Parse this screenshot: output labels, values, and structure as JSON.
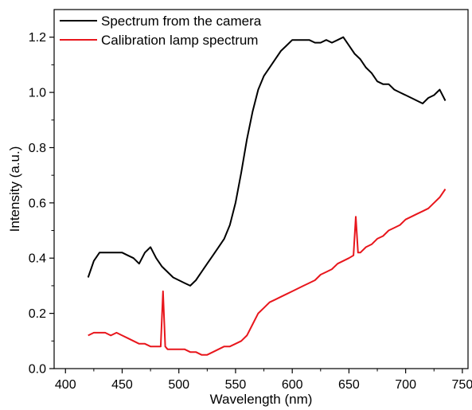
{
  "chart_data": {
    "type": "line",
    "title": "",
    "xlabel": "Wavelength (nm)",
    "ylabel": "Intensity (a.u.)",
    "xlim": [
      390,
      755
    ],
    "ylim": [
      0.0,
      1.3
    ],
    "xticks": [
      400,
      450,
      500,
      550,
      600,
      650,
      700,
      750
    ],
    "yticks": [
      0.0,
      0.2,
      0.4,
      0.6,
      0.8,
      1.0,
      1.2
    ],
    "ytick_labels": [
      "0.0",
      "0.2",
      "0.4",
      "0.6",
      "0.8",
      "1.0",
      "1.2"
    ],
    "grid": false,
    "legend": "top-left",
    "series": [
      {
        "name": "Spectrum from the camera",
        "color": "#000000",
        "x": [
          420,
          425,
          430,
          435,
          440,
          445,
          450,
          455,
          460,
          465,
          470,
          475,
          480,
          485,
          490,
          495,
          500,
          505,
          510,
          515,
          520,
          525,
          530,
          535,
          540,
          545,
          550,
          555,
          560,
          565,
          570,
          575,
          580,
          585,
          590,
          595,
          600,
          605,
          610,
          615,
          620,
          625,
          630,
          635,
          640,
          645,
          650,
          655,
          660,
          665,
          670,
          675,
          680,
          685,
          690,
          695,
          700,
          705,
          710,
          715,
          720,
          725,
          730,
          735
        ],
        "y": [
          0.33,
          0.39,
          0.42,
          0.42,
          0.42,
          0.42,
          0.42,
          0.41,
          0.4,
          0.38,
          0.42,
          0.44,
          0.4,
          0.37,
          0.35,
          0.33,
          0.32,
          0.31,
          0.3,
          0.32,
          0.35,
          0.38,
          0.41,
          0.44,
          0.47,
          0.52,
          0.6,
          0.71,
          0.83,
          0.93,
          1.01,
          1.06,
          1.09,
          1.12,
          1.15,
          1.17,
          1.19,
          1.19,
          1.19,
          1.19,
          1.18,
          1.18,
          1.19,
          1.18,
          1.19,
          1.2,
          1.17,
          1.14,
          1.12,
          1.09,
          1.07,
          1.04,
          1.03,
          1.03,
          1.01,
          1.0,
          0.99,
          0.98,
          0.97,
          0.96,
          0.98,
          0.99,
          1.01,
          0.97
        ]
      },
      {
        "name": "Calibration lamp spectrum",
        "color": "#e8161c",
        "x": [
          420,
          425,
          430,
          435,
          440,
          445,
          450,
          455,
          460,
          465,
          470,
          475,
          480,
          484,
          486,
          488,
          490,
          495,
          500,
          505,
          510,
          515,
          520,
          525,
          530,
          535,
          540,
          545,
          550,
          555,
          560,
          565,
          570,
          575,
          580,
          585,
          590,
          595,
          600,
          605,
          610,
          615,
          620,
          625,
          630,
          635,
          640,
          645,
          650,
          654,
          656,
          658,
          660,
          665,
          670,
          675,
          680,
          685,
          690,
          695,
          700,
          705,
          710,
          715,
          720,
          725,
          730,
          735
        ],
        "y": [
          0.12,
          0.13,
          0.13,
          0.13,
          0.12,
          0.13,
          0.12,
          0.11,
          0.1,
          0.09,
          0.09,
          0.08,
          0.08,
          0.08,
          0.28,
          0.08,
          0.07,
          0.07,
          0.07,
          0.07,
          0.06,
          0.06,
          0.05,
          0.05,
          0.06,
          0.07,
          0.08,
          0.08,
          0.09,
          0.1,
          0.12,
          0.16,
          0.2,
          0.22,
          0.24,
          0.25,
          0.26,
          0.27,
          0.28,
          0.29,
          0.3,
          0.31,
          0.32,
          0.34,
          0.35,
          0.36,
          0.38,
          0.39,
          0.4,
          0.41,
          0.55,
          0.42,
          0.42,
          0.44,
          0.45,
          0.47,
          0.48,
          0.5,
          0.51,
          0.52,
          0.54,
          0.55,
          0.56,
          0.57,
          0.58,
          0.6,
          0.62,
          0.65
        ]
      }
    ]
  }
}
